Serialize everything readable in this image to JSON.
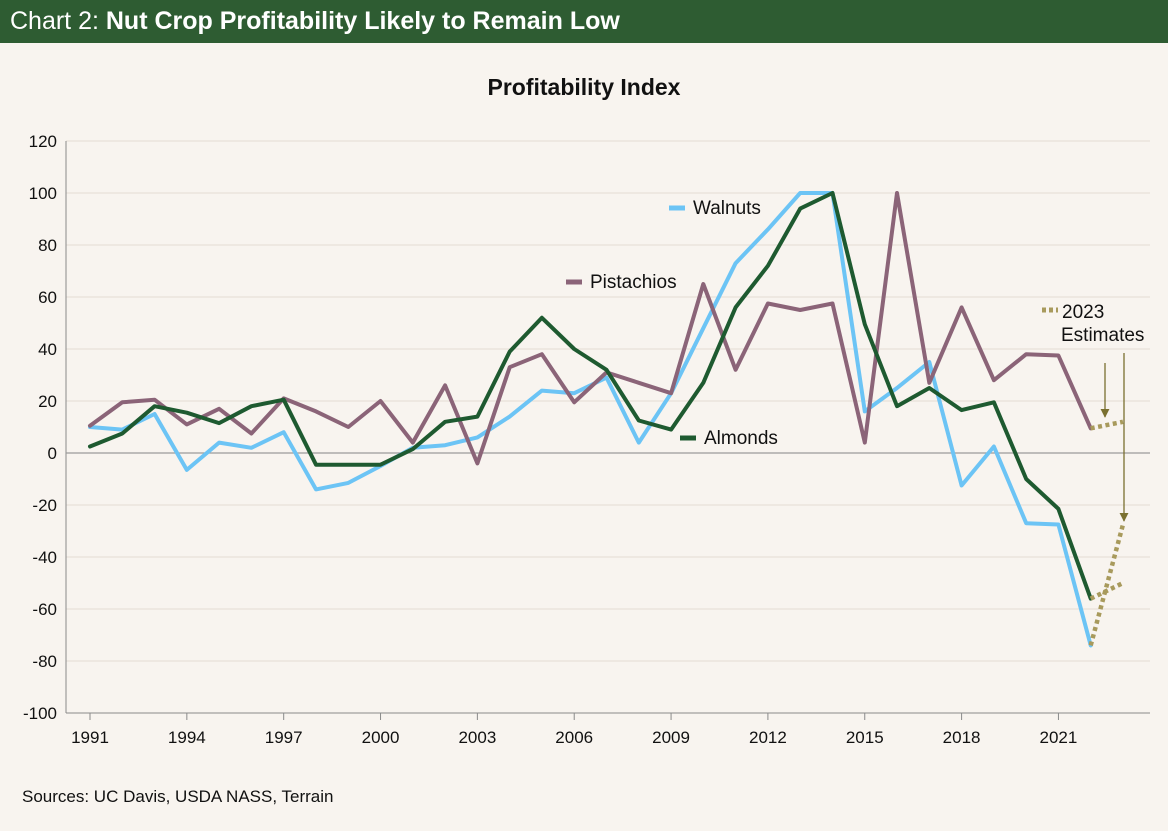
{
  "header": {
    "prefix": "Chart 2: ",
    "title": "Nut Crop Profitability Likely to Remain Low"
  },
  "source": "Sources: UC Davis, USDA NASS, Terrain",
  "colors": {
    "header_bg": "#2e5c32",
    "walnuts": "#6cc4f5",
    "pistachios": "#8b6478",
    "almonds": "#1e5a30",
    "estimates": "#a89a5c",
    "annotation_arrow": "#7a7030",
    "zero_line": "#9a9a9a",
    "grid": "#e4ddd3"
  },
  "chart_data": {
    "type": "line",
    "title": "Profitability Index",
    "xlabel": "",
    "ylabel": "",
    "ylim": [
      -100,
      120
    ],
    "yticks": [
      120,
      100,
      80,
      60,
      40,
      20,
      0,
      -20,
      -40,
      -60,
      -80,
      -100
    ],
    "xlim": [
      1991,
      2023
    ],
    "xticks": [
      1991,
      1994,
      1997,
      2000,
      2003,
      2006,
      2009,
      2012,
      2015,
      2018,
      2021
    ],
    "x": [
      1991,
      1992,
      1993,
      1994,
      1995,
      1996,
      1997,
      1998,
      1999,
      2000,
      2001,
      2002,
      2003,
      2004,
      2005,
      2006,
      2007,
      2008,
      2009,
      2010,
      2011,
      2012,
      2013,
      2014,
      2015,
      2016,
      2017,
      2018,
      2019,
      2020,
      2021,
      2022
    ],
    "series": [
      {
        "name": "Walnuts",
        "key": "walnuts",
        "values": [
          10,
          9,
          15,
          -6.5,
          4,
          2,
          8,
          -14,
          -11.5,
          -5,
          2,
          3,
          6,
          14,
          24,
          23,
          29,
          4,
          23,
          48,
          73,
          86,
          100,
          100,
          16,
          25,
          35,
          -12.5,
          2.5,
          -27,
          -27.5,
          -74
        ]
      },
      {
        "name": "Pistachios",
        "key": "pistachios",
        "values": [
          10.5,
          19.5,
          20.5,
          11,
          17,
          7.5,
          21,
          16,
          10,
          20,
          4,
          26,
          -4,
          33,
          38,
          19.5,
          31,
          27,
          23,
          65,
          32,
          57.5,
          55,
          57.5,
          4,
          100,
          27,
          56,
          28,
          38,
          37.5,
          9.5
        ]
      },
      {
        "name": "Almonds",
        "key": "almonds",
        "values": [
          2.5,
          7.5,
          18,
          15.5,
          11.5,
          18,
          20.5,
          -4.5,
          -4.5,
          -4.5,
          1.5,
          12,
          14,
          39,
          52,
          40,
          32,
          12.5,
          9,
          27,
          56,
          72,
          94,
          100,
          49.5,
          18,
          25,
          16.5,
          19.5,
          -10,
          -21.5,
          -56
        ]
      }
    ],
    "estimates": {
      "name": "2023 Estimates",
      "x": [
        2022,
        2023
      ],
      "walnuts": [
        -74,
        -27.5
      ],
      "pistachios": [
        9.5,
        12
      ],
      "almonds": [
        -56,
        -50
      ]
    },
    "labels": {
      "walnuts": "Walnuts",
      "pistachios": "Pistachios",
      "almonds": "Almonds",
      "estimates_line1": "2023",
      "estimates_line2": "Estimates"
    }
  }
}
